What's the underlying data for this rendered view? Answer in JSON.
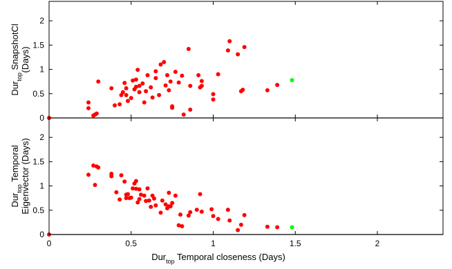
{
  "chart_data": [
    {
      "type": "scatter",
      "ylabel_lines": [
        {
          "main": "Dur",
          "sub": "top",
          "rest": " SnapshotCl"
        },
        {
          "main": "(Days)",
          "sub": "",
          "rest": ""
        }
      ],
      "xlim": [
        0,
        2.4
      ],
      "ylim": [
        0,
        2.4
      ],
      "yticks": [
        "0",
        "0.5",
        "1",
        "1.5",
        "2"
      ],
      "ytick_values": [
        0,
        0.5,
        1,
        1.5,
        2
      ],
      "series": [
        {
          "color": "#ff0000",
          "x": [
            0.0,
            0.24,
            0.24,
            0.27,
            0.28,
            0.29,
            0.3,
            0.38,
            0.4,
            0.43,
            0.44,
            0.45,
            0.46,
            0.47,
            0.47,
            0.48,
            0.5,
            0.51,
            0.52,
            0.53,
            0.53,
            0.54,
            0.55,
            0.55,
            0.57,
            0.58,
            0.59,
            0.6,
            0.62,
            0.63,
            0.65,
            0.65,
            0.67,
            0.68,
            0.7,
            0.71,
            0.72,
            0.73,
            0.74,
            0.75,
            0.75,
            0.77,
            0.79,
            0.81,
            0.82,
            0.85,
            0.86,
            0.86,
            0.91,
            0.92,
            0.93,
            0.93,
            1.0,
            1.0,
            1.03,
            1.09,
            1.1,
            1.15,
            1.17,
            1.18,
            1.19,
            1.33,
            1.39
          ],
          "y": [
            0.0,
            0.32,
            0.2,
            0.05,
            0.07,
            0.09,
            0.75,
            0.61,
            0.26,
            0.28,
            0.47,
            0.53,
            0.72,
            0.61,
            0.47,
            0.35,
            0.41,
            0.77,
            0.59,
            0.64,
            0.79,
            0.99,
            0.53,
            0.66,
            0.71,
            0.32,
            0.55,
            0.88,
            0.63,
            0.42,
            0.96,
            0.82,
            0.47,
            1.1,
            1.15,
            0.67,
            0.88,
            0.57,
            0.75,
            0.24,
            0.21,
            0.95,
            0.73,
            0.87,
            0.07,
            1.42,
            0.17,
            0.66,
            0.88,
            0.63,
            0.66,
            0.76,
            0.38,
            0.49,
            0.9,
            1.39,
            1.58,
            1.31,
            0.55,
            0.58,
            1.46,
            0.57,
            0.68
          ]
        },
        {
          "color": "#00ff00",
          "x": [
            1.48
          ],
          "y": [
            0.78
          ]
        }
      ]
    },
    {
      "type": "scatter",
      "ylabel_lines": [
        {
          "main": "Dur",
          "sub": "top",
          "rest": " Temporal"
        },
        {
          "main": "Eigenvector (Days)",
          "sub": "",
          "rest": ""
        }
      ],
      "xlim": [
        0,
        2.4
      ],
      "ylim": [
        0,
        2.4
      ],
      "yticks": [
        "0",
        "0.5",
        "1",
        "1.5",
        "2"
      ],
      "ytick_values": [
        0,
        0.5,
        1,
        1.5,
        2
      ],
      "xticks": [
        "0",
        "0.5",
        "1",
        "1.5",
        "2"
      ],
      "xtick_values": [
        0,
        0.5,
        1,
        1.5,
        2
      ],
      "xlabel": {
        "main": "Dur",
        "sub": "top",
        "rest": " Temporal closeness (Days)"
      },
      "series": [
        {
          "color": "#ff0000",
          "x": [
            0.0,
            0.24,
            0.27,
            0.28,
            0.29,
            0.3,
            0.38,
            0.38,
            0.41,
            0.43,
            0.44,
            0.46,
            0.47,
            0.47,
            0.48,
            0.49,
            0.5,
            0.51,
            0.52,
            0.53,
            0.53,
            0.54,
            0.55,
            0.55,
            0.56,
            0.58,
            0.59,
            0.6,
            0.61,
            0.62,
            0.63,
            0.64,
            0.65,
            0.68,
            0.69,
            0.71,
            0.72,
            0.73,
            0.73,
            0.74,
            0.75,
            0.77,
            0.79,
            0.8,
            0.81,
            0.85,
            0.86,
            0.9,
            0.92,
            0.93,
            0.99,
            1.0,
            1.03,
            1.09,
            1.1,
            1.15,
            1.17,
            1.19,
            1.33,
            1.39
          ],
          "y": [
            0.0,
            1.23,
            1.42,
            1.02,
            1.4,
            1.38,
            1.25,
            1.2,
            0.87,
            0.72,
            1.22,
            1.09,
            0.75,
            0.82,
            0.83,
            0.75,
            0.76,
            0.95,
            1.05,
            0.94,
            1.1,
            0.66,
            0.93,
            0.73,
            0.82,
            0.8,
            0.69,
            0.95,
            0.7,
            0.57,
            0.8,
            0.74,
            0.6,
            0.45,
            0.7,
            0.62,
            0.54,
            0.58,
            0.86,
            0.58,
            0.65,
            0.8,
            0.19,
            0.41,
            0.17,
            0.39,
            0.46,
            0.51,
            0.83,
            0.47,
            0.52,
            0.38,
            0.32,
            0.51,
            0.29,
            0.09,
            0.2,
            0.4,
            0.16,
            0.15
          ]
        },
        {
          "color": "#00ff00",
          "x": [
            1.48
          ],
          "y": [
            0.15
          ]
        }
      ]
    }
  ]
}
